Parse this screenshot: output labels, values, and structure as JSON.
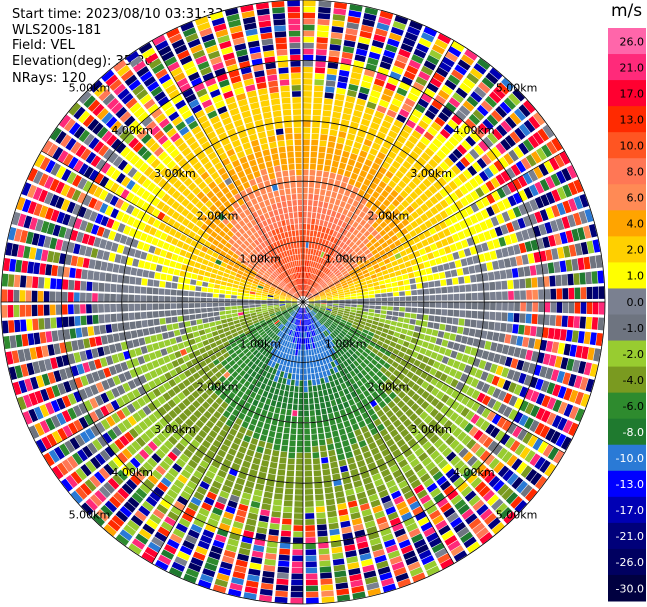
{
  "header": {
    "start_time": "Start time: 2023/08/10 03:31:33",
    "instrument": "WLS200s-181",
    "field": "Field: VEL",
    "elevation": "Elevation(deg): 35.30",
    "nrays": "NRays: 120"
  },
  "colorbar": {
    "unit": "m/s",
    "ticks": [
      "26.0",
      "21.0",
      "17.0",
      "13.0",
      "10.0",
      "8.0",
      "6.0",
      "4.0",
      "2.0",
      "1.0",
      "0.0",
      "-1.0",
      "-2.0",
      "-4.0",
      "-6.0",
      "-8.0",
      "-10.0",
      "-13.0",
      "-17.0",
      "-21.0",
      "-26.0",
      "-30.0"
    ],
    "colors": [
      "#ff66aa",
      "#ff2a7a",
      "#ff0030",
      "#ff2a00",
      "#ff5522",
      "#ff7755",
      "#ff8a55",
      "#ffa400",
      "#ffd000",
      "#ffff00",
      "#7a8090",
      "#6e7480",
      "#98cc30",
      "#7a9a20",
      "#2e8b2e",
      "#1f7a2f",
      "#2a7ad6",
      "#0000ff",
      "#0000b4",
      "#00007a",
      "#000060",
      "#000040"
    ]
  },
  "chart_data": {
    "type": "heatmap",
    "projection": "polar PPI (azimuth vs range)",
    "field": "VEL",
    "unit": "m/s",
    "rays": 120,
    "range_max_km": 5.0,
    "range_rings_km": [
      1.0,
      2.0,
      3.0,
      4.0,
      5.0
    ],
    "range_ring_labels": [
      "1.00km",
      "2.00km",
      "3.00km",
      "4.00km",
      "5.00km"
    ],
    "spoke_angles_deg": [
      0,
      30,
      60,
      90,
      120,
      150,
      180,
      210,
      240,
      270,
      300,
      330
    ],
    "pattern": {
      "toward_north_max_ms": 13.0,
      "toward_south_min_ms": -10.0,
      "description_zones": [
        {
          "azimuth_deg": 0,
          "near_ms": 13.0,
          "far_ms": 6.0
        },
        {
          "azimuth_deg": 180,
          "near_ms": -10.0,
          "far_ms": -6.0
        },
        {
          "azimuth_deg": 90,
          "near_ms": 0.0,
          "far_ms": 2.0
        },
        {
          "azimuth_deg": 270,
          "near_ms": 0.0,
          "far_ms": -2.0
        }
      ],
      "noise_beyond_km": 3.4
    }
  }
}
